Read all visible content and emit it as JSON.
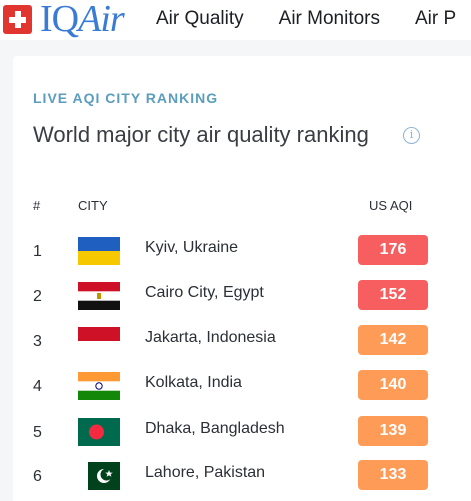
{
  "header": {
    "brand_iq": "IQ",
    "brand_air": "Air",
    "nav": [
      "Air Quality",
      "Air Monitors",
      "Air P"
    ]
  },
  "ranking": {
    "section_label": "LIVE AQI CITY RANKING",
    "title": "World major city air quality ranking",
    "info_glyph": "i",
    "columns": {
      "rank": "#",
      "city": "CITY",
      "aqi": "US AQI"
    },
    "rows": [
      {
        "rank": "1",
        "city": "Kyiv, Ukraine",
        "aqi": "176",
        "flag": "ukraine-flag-icon",
        "aqi_color": "#f65e5f"
      },
      {
        "rank": "2",
        "city": "Cairo City, Egypt",
        "aqi": "152",
        "flag": "egypt-flag-icon",
        "aqi_color": "#f65e5f"
      },
      {
        "rank": "3",
        "city": "Jakarta, Indonesia",
        "aqi": "142",
        "flag": "indonesia-flag-icon",
        "aqi_color": "#fe9b57"
      },
      {
        "rank": "4",
        "city": "Kolkata, India",
        "aqi": "140",
        "flag": "india-flag-icon",
        "aqi_color": "#fe9b57"
      },
      {
        "rank": "5",
        "city": "Dhaka, Bangladesh",
        "aqi": "139",
        "flag": "bangladesh-flag-icon",
        "aqi_color": "#fe9b57"
      },
      {
        "rank": "6",
        "city": "Lahore, Pakistan",
        "aqi": "133",
        "flag": "pakistan-flag-icon",
        "aqi_color": "#fe9b57"
      }
    ]
  }
}
